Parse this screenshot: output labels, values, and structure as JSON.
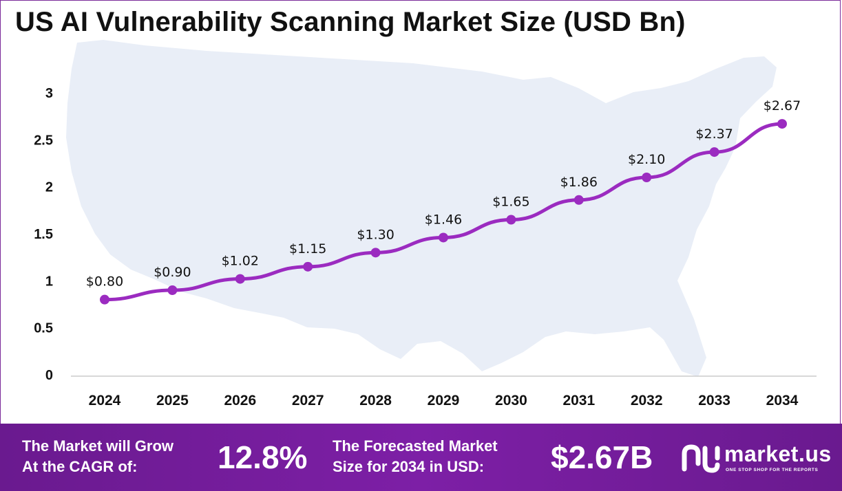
{
  "title": "US AI Vulnerability Scanning Market Size (USD Bn)",
  "chart_data": {
    "type": "line",
    "categories": [
      "2024",
      "2025",
      "2026",
      "2027",
      "2028",
      "2029",
      "2030",
      "2031",
      "2032",
      "2033",
      "2034"
    ],
    "values": [
      0.8,
      0.9,
      1.02,
      1.15,
      1.3,
      1.46,
      1.65,
      1.86,
      2.1,
      2.37,
      2.67
    ],
    "data_labels": [
      "$0.80",
      "$0.90",
      "$1.02",
      "$1.15",
      "$1.30",
      "$1.46",
      "$1.65",
      "$1.86",
      "$2.10",
      "$2.37",
      "$2.67"
    ],
    "yticks": [
      "0",
      "0.5",
      "1",
      "1.5",
      "2",
      "2.5",
      "3"
    ],
    "ylim": [
      0,
      3
    ],
    "grid": false,
    "line_color": "#9b2bc0"
  },
  "footer": {
    "cagr_label_line1": "The Market will Grow",
    "cagr_label_line2": "At the CAGR of:",
    "cagr_value": "12.8%",
    "forecast_label_line1": "The Forecasted Market",
    "forecast_label_line2": "Size for 2034 in USD:",
    "forecast_value": "$2.67B",
    "logo_text": "market.us",
    "logo_tagline": "ONE STOP SHOP FOR THE REPORTS"
  },
  "colors": {
    "footer_bg": "#6a1a8f",
    "map_fill": "#e9eef7"
  }
}
